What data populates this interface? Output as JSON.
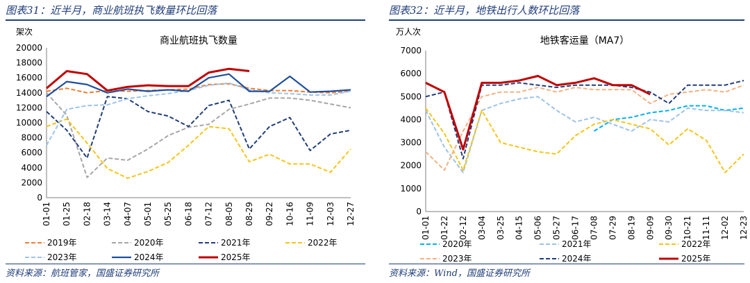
{
  "left": {
    "panel_title": "图表31：近半月，商业航班执飞数量环比回落",
    "source": "资料来源：航班管家，国盛证券研究所"
  },
  "right": {
    "panel_title": "图表32：近半月，地铁出行人数环比回落",
    "source": "资料来源：Wind，国盛证券研究所"
  },
  "chart_data": [
    {
      "type": "line",
      "title": "商业航班执飞数量",
      "ylabel": "架次",
      "ylim": [
        0,
        20000
      ],
      "yticks": [
        0,
        2000,
        4000,
        6000,
        8000,
        10000,
        12000,
        14000,
        16000,
        18000,
        20000
      ],
      "categories": [
        "01-01",
        "01-25",
        "02-18",
        "03-14",
        "04-07",
        "05-01",
        "05-25",
        "06-18",
        "07-12",
        "08-05",
        "08-29",
        "09-22",
        "10-16",
        "11-09",
        "12-03",
        "12-27"
      ],
      "series": [
        {
          "name": "2019年",
          "color": "#ed7d31",
          "dash": "6,3",
          "width": 2,
          "values": [
            14200,
            14600,
            14000,
            14300,
            14200,
            14300,
            14400,
            14500,
            15100,
            15200,
            14600,
            14300,
            14300,
            14100,
            14000,
            14200
          ]
        },
        {
          "name": "2020年",
          "color": "#a6a6a6",
          "dash": "6,3",
          "width": 2,
          "values": [
            14000,
            11000,
            2700,
            5300,
            5000,
            6500,
            8300,
            9400,
            9800,
            11800,
            12500,
            13300,
            13300,
            13000,
            12500,
            12000
          ]
        },
        {
          "name": "2021年",
          "color": "#1f3d7a",
          "dash": "6,3",
          "width": 2,
          "values": [
            11500,
            9000,
            5300,
            13500,
            13200,
            11500,
            10900,
            9500,
            12300,
            13000,
            6500,
            9500,
            10700,
            6300,
            8500,
            9000
          ]
        },
        {
          "name": "2022年",
          "color": "#f5c518",
          "dash": "6,3",
          "width": 2,
          "values": [
            9500,
            10500,
            7300,
            3900,
            2600,
            3500,
            4700,
            7000,
            9500,
            9200,
            4800,
            5800,
            4500,
            4500,
            3400,
            6500
          ]
        },
        {
          "name": "2023年",
          "color": "#9dc3e6",
          "dash": "6,3",
          "width": 2,
          "values": [
            7000,
            11800,
            12300,
            12400,
            13200,
            13600,
            13900,
            14300,
            15000,
            15300,
            14400,
            14000,
            13900,
            13700,
            13700,
            14200
          ]
        },
        {
          "name": "2024年",
          "color": "#1f4e9c",
          "dash": "",
          "width": 2.2,
          "values": [
            13500,
            15500,
            15100,
            14000,
            14500,
            14200,
            14400,
            14200,
            16000,
            16500,
            14200,
            14200,
            16200,
            14100,
            14200,
            14400
          ]
        },
        {
          "name": "2025年",
          "color": "#c00000",
          "dash": "",
          "width": 3,
          "values": [
            14600,
            16900,
            16500,
            14300,
            14800,
            15000,
            14900,
            14900,
            16700,
            17200,
            16900,
            null,
            null,
            null,
            null,
            null
          ]
        }
      ]
    },
    {
      "type": "line",
      "title": "地铁客运量（MA7）",
      "ylabel": "万人次",
      "ylim": [
        0,
        7000
      ],
      "yticks": [
        0,
        1000,
        2000,
        3000,
        4000,
        5000,
        6000,
        7000
      ],
      "categories": [
        "01-01",
        "01-22",
        "02-12",
        "03-04",
        "03-25",
        "04-15",
        "05-06",
        "05-27",
        "06-17",
        "07-08",
        "07-29",
        "08-19",
        "09-09",
        "09-30",
        "10-21",
        "11-11",
        "12-02",
        "12-23"
      ],
      "series": [
        {
          "name": "2020年",
          "color": "#00b0f0",
          "dash": "6,3",
          "width": 2,
          "values": [
            null,
            null,
            null,
            null,
            null,
            null,
            null,
            null,
            null,
            3500,
            4000,
            4100,
            4300,
            4400,
            4600,
            4600,
            4400,
            4500
          ]
        },
        {
          "name": "2021年",
          "color": "#9dc3e6",
          "dash": "6,3",
          "width": 2,
          "values": [
            4400,
            2800,
            1700,
            4400,
            4700,
            4900,
            5000,
            4400,
            3900,
            4100,
            3800,
            3500,
            4000,
            3900,
            4500,
            4400,
            4400,
            4300
          ]
        },
        {
          "name": "2022年",
          "color": "#f5c518",
          "dash": "6,3",
          "width": 2,
          "values": [
            4500,
            3400,
            1800,
            4400,
            3000,
            2800,
            2600,
            2500,
            3300,
            3800,
            4000,
            3800,
            3600,
            2900,
            3600,
            3100,
            1700,
            2500
          ]
        },
        {
          "name": "2023年",
          "color": "#f4b183",
          "dash": "6,3",
          "width": 2,
          "values": [
            2600,
            1800,
            3500,
            5000,
            5200,
            5200,
            5400,
            5200,
            5400,
            5300,
            5300,
            5300,
            4700,
            5100,
            5200,
            5300,
            5200,
            5500
          ]
        },
        {
          "name": "2024年",
          "color": "#1f3d7a",
          "dash": "6,3",
          "width": 2,
          "values": [
            5000,
            5200,
            2300,
            5500,
            5500,
            5600,
            5500,
            5400,
            5500,
            5500,
            5500,
            5400,
            5200,
            4700,
            5500,
            5500,
            5500,
            5700
          ]
        },
        {
          "name": "2025年",
          "color": "#c00000",
          "dash": "",
          "width": 3,
          "values": [
            5600,
            5200,
            2700,
            5600,
            5600,
            5700,
            5900,
            5500,
            5600,
            5800,
            5500,
            5500,
            5100,
            null,
            null,
            null,
            null,
            null
          ]
        }
      ]
    }
  ]
}
